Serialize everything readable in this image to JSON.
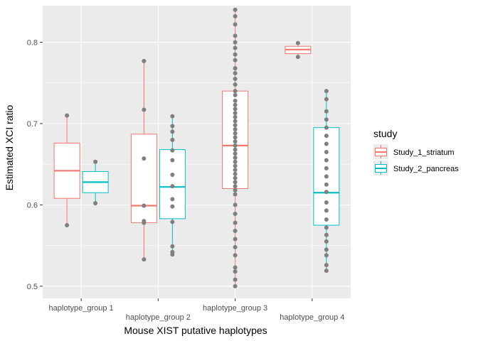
{
  "chart_data": {
    "type": "boxplot",
    "xlabel": "Mouse XIST putative haplotypes",
    "ylabel": "Estimated XCI ratio",
    "categories": [
      "haplotype_group 1",
      "haplotype_group 2",
      "haplotype_group 3",
      "haplotype_group 4"
    ],
    "ylim": [
      0.485,
      0.845
    ],
    "yticks": [
      0.5,
      0.6,
      0.7,
      0.8
    ],
    "ytick_labels": [
      "0.5",
      "0.6",
      "0.7",
      "0.8"
    ],
    "grid": true,
    "legend": {
      "title": "study",
      "placement": "right",
      "entries": [
        "Study_1_striatum",
        "Study_2_pancreas"
      ]
    },
    "colors": {
      "panel_background": "#ebebeb",
      "grid": "#ffffff",
      "point": "#7f7f7f",
      "Study_1_striatum": "#f8766d",
      "Study_2_pancreas": "#00bfc4"
    },
    "series": [
      {
        "name": "Study_1_striatum",
        "boxes": [
          {
            "category": "haplotype_group 1",
            "whisker_low": 0.575,
            "q1": 0.608,
            "median": 0.642,
            "q3": 0.676,
            "whisker_high": 0.71,
            "points": [
              0.71,
              0.575
            ]
          },
          {
            "category": "haplotype_group 2",
            "whisker_low": 0.533,
            "q1": 0.578,
            "median": 0.599,
            "q3": 0.687,
            "whisker_high": 0.777,
            "points": [
              0.777,
              0.717,
              0.657,
              0.599,
              0.58,
              0.578,
              0.533
            ]
          },
          {
            "category": "haplotype_group 3",
            "whisker_low": 0.5,
            "q1": 0.62,
            "median": 0.673,
            "q3": 0.74,
            "whisker_high": 0.84,
            "points": [
              0.84,
              0.832,
              0.822,
              0.808,
              0.8,
              0.793,
              0.785,
              0.778,
              0.768,
              0.762,
              0.755,
              0.748,
              0.74,
              0.735,
              0.728,
              0.723,
              0.718,
              0.713,
              0.708,
              0.703,
              0.698,
              0.693,
              0.688,
              0.683,
              0.678,
              0.673,
              0.668,
              0.663,
              0.658,
              0.653,
              0.648,
              0.643,
              0.638,
              0.633,
              0.628,
              0.623,
              0.618,
              0.613,
              0.6,
              0.589,
              0.578,
              0.568,
              0.558,
              0.548,
              0.538,
              0.523,
              0.518,
              0.508,
              0.5
            ]
          },
          {
            "category": "haplotype_group 4",
            "whisker_low": 0.782,
            "q1": 0.786,
            "median": 0.791,
            "q3": 0.795,
            "whisker_high": 0.799,
            "points": [
              0.799,
              0.782
            ]
          }
        ]
      },
      {
        "name": "Study_2_pancreas",
        "boxes": [
          {
            "category": "haplotype_group 1",
            "whisker_low": 0.602,
            "q1": 0.615,
            "median": 0.628,
            "q3": 0.641,
            "whisker_high": 0.653,
            "points": [
              0.653,
              0.602
            ]
          },
          {
            "category": "haplotype_group 2",
            "whisker_low": 0.539,
            "q1": 0.583,
            "median": 0.622,
            "q3": 0.668,
            "whisker_high": 0.709,
            "points": [
              0.709,
              0.697,
              0.69,
              0.68,
              0.667,
              0.655,
              0.637,
              0.623,
              0.607,
              0.598,
              0.579,
              0.549,
              0.542,
              0.539
            ]
          },
          {
            "category": "haplotype_group 4",
            "whisker_low": 0.519,
            "q1": 0.575,
            "median": 0.615,
            "q3": 0.695,
            "whisker_high": 0.74,
            "points": [
              0.74,
              0.73,
              0.715,
              0.705,
              0.695,
              0.685,
              0.675,
              0.665,
              0.655,
              0.645,
              0.635,
              0.625,
              0.616,
              0.603,
              0.593,
              0.582,
              0.572,
              0.563,
              0.555,
              0.545,
              0.538,
              0.526,
              0.519
            ]
          }
        ]
      }
    ]
  }
}
